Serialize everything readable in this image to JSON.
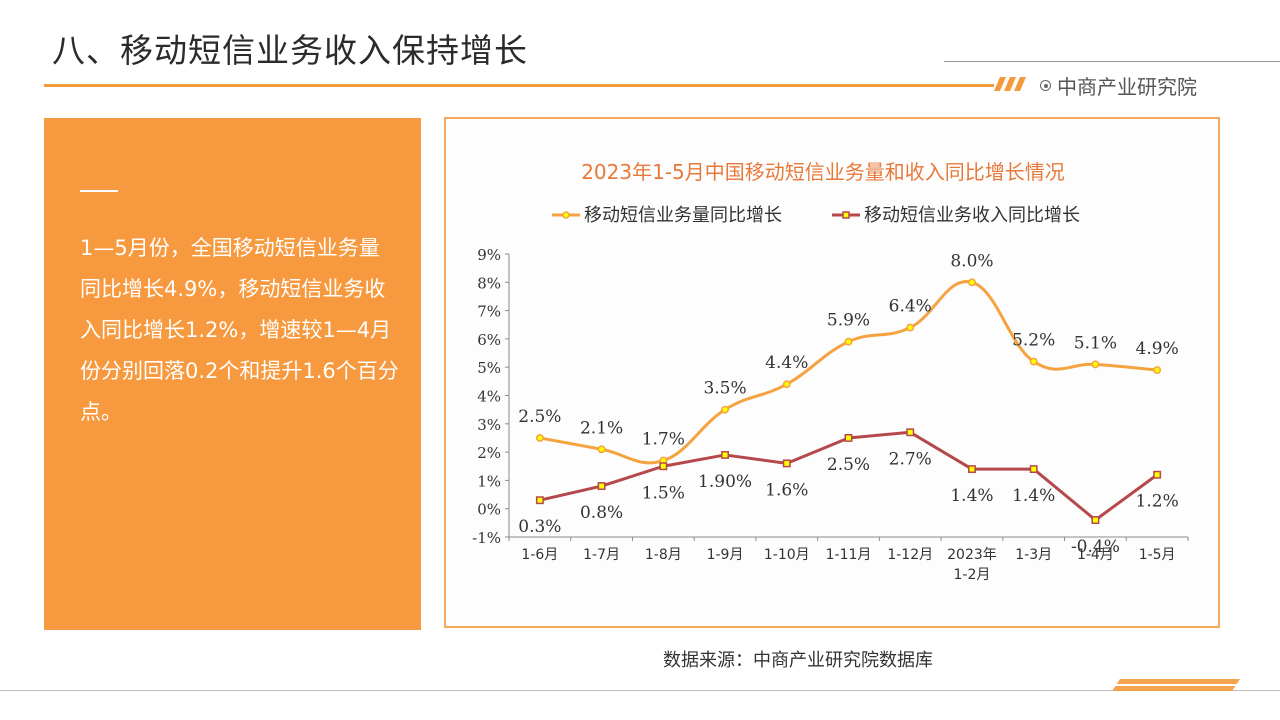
{
  "slide": {
    "title": "八、移动短信业务收入保持增长",
    "brand": "中商产业研究院",
    "summary": "1—5月份，全国移动短信业务量同比增长4.9%，移动短信业务收入同比增长1.2%，增速较1—4月份分别回落0.2个和提升1.6个百分点。",
    "source": "数据来源：中商产业研究院数据库"
  },
  "colors": {
    "accent": "#f7993e",
    "series_volume": "#f5a340",
    "series_revenue": "#b5484a",
    "marker_fill": "#ffff00"
  },
  "chart_data": {
    "type": "line",
    "title": "2023年1-5月中国移动短信业务量和收入同比增长情况",
    "categories": [
      "1-6月",
      "1-7月",
      "1-8月",
      "1-9月",
      "1-10月",
      "1-11月",
      "1-12月",
      "2023年1-2月",
      "1-3月",
      "1-4月",
      "1-5月"
    ],
    "series": [
      {
        "name": "移动短信业务量同比增长",
        "values": [
          2.5,
          2.1,
          1.7,
          3.5,
          4.4,
          5.9,
          6.4,
          8.0,
          5.2,
          5.1,
          4.9
        ],
        "labels": [
          "2.5%",
          "2.1%",
          "1.7%",
          "3.5%",
          "4.4%",
          "5.9%",
          "6.4%",
          "8.0%",
          "5.2%",
          "5.1%",
          "4.9%"
        ],
        "smooth": true,
        "marker": "circle"
      },
      {
        "name": "移动短信业务收入同比增长",
        "values": [
          0.3,
          0.8,
          1.5,
          1.9,
          1.6,
          2.5,
          2.7,
          1.4,
          1.4,
          -0.4,
          1.2
        ],
        "labels": [
          "0.3%",
          "0.8%",
          "1.5%",
          "1.90%",
          "1.6%",
          "2.5%",
          "2.7%",
          "1.4%",
          "1.4%",
          "-0.4%",
          "1.2%"
        ],
        "smooth": false,
        "marker": "square"
      }
    ],
    "yticks": [
      "-1%",
      "0%",
      "1%",
      "2%",
      "3%",
      "4%",
      "5%",
      "6%",
      "7%",
      "8%",
      "9%"
    ],
    "ylim": [
      -1,
      9
    ],
    "grid": false,
    "legend": "top"
  }
}
